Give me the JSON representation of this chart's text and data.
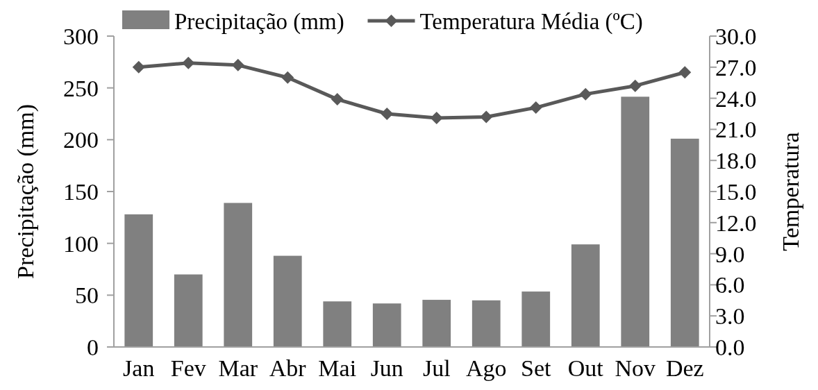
{
  "chart_data": {
    "type": "bar",
    "categories": [
      "Jan",
      "Fev",
      "Mar",
      "Abr",
      "Mai",
      "Jun",
      "Jul",
      "Ago",
      "Set",
      "Out",
      "Nov",
      "Dez"
    ],
    "series": [
      {
        "name": "Precipitação (mm)",
        "color": "#808080",
        "values": [
          128,
          70,
          139,
          88,
          44,
          42,
          45.5,
          45,
          53.5,
          99,
          241.5,
          201
        ]
      },
      {
        "name": "Temperatura Média (ºC)",
        "type": "line",
        "axis": "y2",
        "color": "#595959",
        "marker": "diamond",
        "values": [
          27.0,
          27.4,
          27.2,
          26.0,
          23.9,
          22.5,
          22.1,
          22.2,
          23.1,
          24.4,
          25.2,
          26.5
        ]
      }
    ],
    "ylabel": "Precipitação (mm)",
    "y2label": "Temperatura",
    "ylim": [
      0,
      300
    ],
    "yticks": [
      0,
      50,
      100,
      150,
      200,
      250,
      300
    ],
    "y2lim": [
      0,
      30
    ],
    "y2ticks": [
      {
        "value": 0,
        "label": "0.0"
      },
      {
        "value": 3,
        "label": "3.0"
      },
      {
        "value": 6,
        "label": "6.0"
      },
      {
        "value": 9,
        "label": "9.0"
      },
      {
        "value": 12,
        "label": "12.0"
      },
      {
        "value": 15,
        "label": "15.0"
      },
      {
        "value": 18,
        "label": "18.0"
      },
      {
        "value": 21,
        "label": "21.0"
      },
      {
        "value": 24,
        "label": "24.0"
      },
      {
        "value": 27,
        "label": "27.0"
      },
      {
        "value": 30,
        "label": "30.0"
      }
    ],
    "grid": false,
    "legend": "top"
  }
}
